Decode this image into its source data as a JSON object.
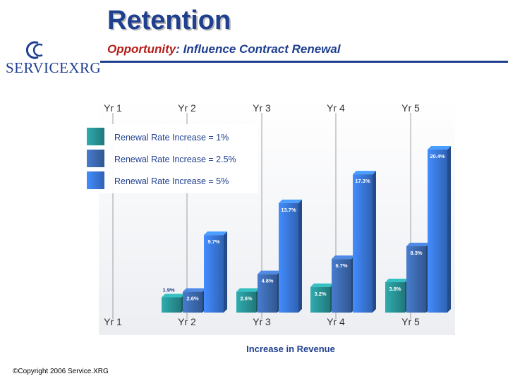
{
  "header": {
    "title": "Retention",
    "subtitle_lead": "Opportunity",
    "subtitle_rest": ": Influence Contract Renewal"
  },
  "logo": {
    "text": "SERVICEXRG",
    "icon": "double-c-logo-icon"
  },
  "footer": {
    "copyright": "©Copyright 2006 Service.XRG"
  },
  "colors": {
    "brand_blue": "#1f3f8f",
    "accent_red": "#b3201a",
    "teal": "#2a9a9c",
    "mid_blue": "#3f6fb8",
    "light_blue": "#3c7ee6"
  },
  "chart_data": {
    "type": "bar",
    "categories": [
      "Yr 1",
      "Yr 2",
      "Yr 3",
      "Yr 4",
      "Yr 5"
    ],
    "series": [
      {
        "name": "Renewal Rate Increase = 1%",
        "values": [
          null,
          1.9,
          2.6,
          3.2,
          3.8
        ],
        "labels": [
          "",
          "1.9%",
          "2.6%",
          "3.2%",
          "3.8%"
        ],
        "color": "#2a9a9c"
      },
      {
        "name": "Renewal Rate Increase = 2.5%",
        "values": [
          null,
          2.6,
          4.8,
          6.7,
          8.3
        ],
        "labels": [
          "",
          "2.6%",
          "4.8%",
          "6.7%",
          "8.3%"
        ],
        "color": "#3f6fb8"
      },
      {
        "name": "Renewal Rate Increase = 5%",
        "values": [
          null,
          9.7,
          13.7,
          17.3,
          20.4
        ],
        "labels": [
          "",
          "9.7%",
          "13.7%",
          "17.3%",
          "20.4%"
        ],
        "color": "#3c7ee6"
      }
    ],
    "xlabel": "Increase in Revenue",
    "ylabel": "",
    "ylim": [
      0,
      22
    ],
    "grid": false,
    "legend": "top-left"
  }
}
